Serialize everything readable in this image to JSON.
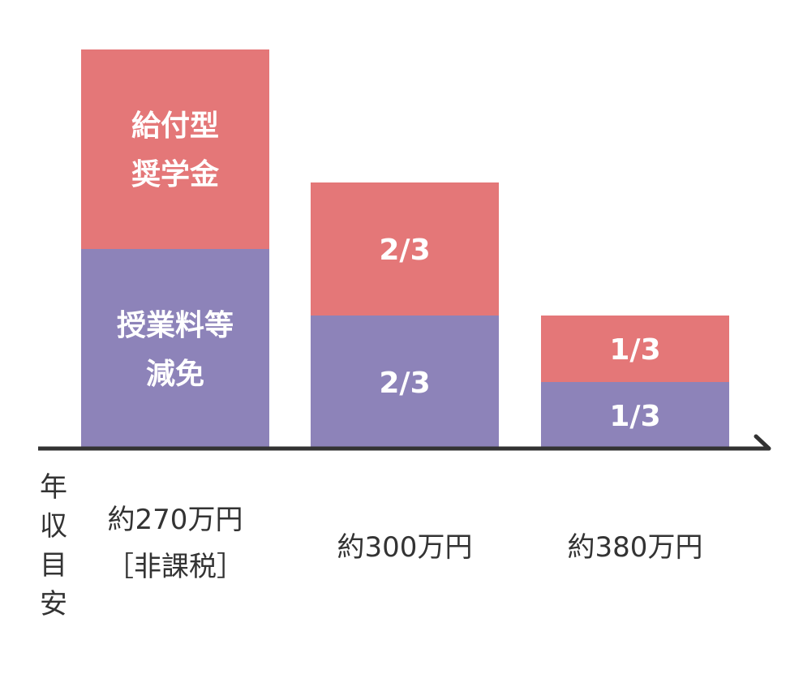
{
  "chart_data": {
    "type": "bar",
    "stacked": true,
    "grid": false,
    "legend": "none",
    "ylabel": "年収目安",
    "categories": [
      {
        "lines": [
          "約270万円",
          "［非課税］"
        ]
      },
      {
        "lines": [
          "約300万円"
        ]
      },
      {
        "lines": [
          "約380万円"
        ]
      }
    ],
    "series": [
      {
        "color": "#8d83b9",
        "values": [
          1,
          0.6667,
          0.3333
        ],
        "labels": [
          [
            "授業料等",
            "減免"
          ],
          [
            "2/3"
          ],
          [
            "1/3"
          ]
        ]
      },
      {
        "color": "#e47778",
        "values": [
          1,
          0.6667,
          0.3333
        ],
        "labels": [
          [
            "給付型",
            "奨学金"
          ],
          [
            "2/3"
          ],
          [
            "1/3"
          ]
        ]
      }
    ],
    "ylim": [
      0,
      2
    ]
  }
}
